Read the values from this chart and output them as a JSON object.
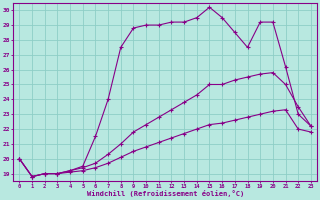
{
  "xlabel": "Windchill (Refroidissement éolien,°C)",
  "ylabel": "",
  "bg_color": "#b8e8e0",
  "grid_color": "#8ecec6",
  "line_color": "#880088",
  "xlim": [
    -0.5,
    23.5
  ],
  "ylim": [
    18.5,
    30.5
  ],
  "xticks": [
    0,
    1,
    2,
    3,
    4,
    5,
    6,
    7,
    8,
    9,
    10,
    11,
    12,
    13,
    14,
    15,
    16,
    17,
    18,
    19,
    20,
    21,
    22,
    23
  ],
  "yticks": [
    19,
    20,
    21,
    22,
    23,
    24,
    25,
    26,
    27,
    28,
    29,
    30
  ],
  "lines": [
    {
      "x": [
        0,
        1,
        2,
        3,
        4,
        5,
        6,
        7,
        8,
        9,
        10,
        11,
        12,
        13,
        14,
        15,
        16,
        17,
        18,
        19,
        20,
        21,
        22,
        23
      ],
      "y": [
        20,
        18.8,
        19,
        19,
        19.2,
        19.5,
        21.5,
        24.0,
        27.5,
        28.8,
        29.0,
        29.0,
        29.2,
        29.2,
        29.5,
        30.2,
        29.5,
        28.5,
        27.5,
        29.2,
        29.2,
        26.2,
        23.0,
        22.2
      ]
    },
    {
      "x": [
        0,
        1,
        2,
        3,
        4,
        5,
        6,
        7,
        8,
        9,
        10,
        11,
        12,
        13,
        14,
        15,
        16,
        17,
        18,
        19,
        20,
        21,
        22,
        23
      ],
      "y": [
        20,
        18.8,
        19,
        19,
        19.2,
        19.4,
        19.7,
        20.3,
        21.0,
        21.8,
        22.3,
        22.8,
        23.3,
        23.8,
        24.3,
        25.0,
        25.0,
        25.3,
        25.5,
        25.7,
        25.8,
        25.0,
        23.5,
        22.2
      ]
    },
    {
      "x": [
        0,
        1,
        2,
        3,
        4,
        5,
        6,
        7,
        8,
        9,
        10,
        11,
        12,
        13,
        14,
        15,
        16,
        17,
        18,
        19,
        20,
        21,
        22,
        23
      ],
      "y": [
        20,
        18.8,
        19,
        19,
        19.1,
        19.2,
        19.4,
        19.7,
        20.1,
        20.5,
        20.8,
        21.1,
        21.4,
        21.7,
        22.0,
        22.3,
        22.4,
        22.6,
        22.8,
        23.0,
        23.2,
        23.3,
        22.0,
        21.8
      ]
    }
  ]
}
